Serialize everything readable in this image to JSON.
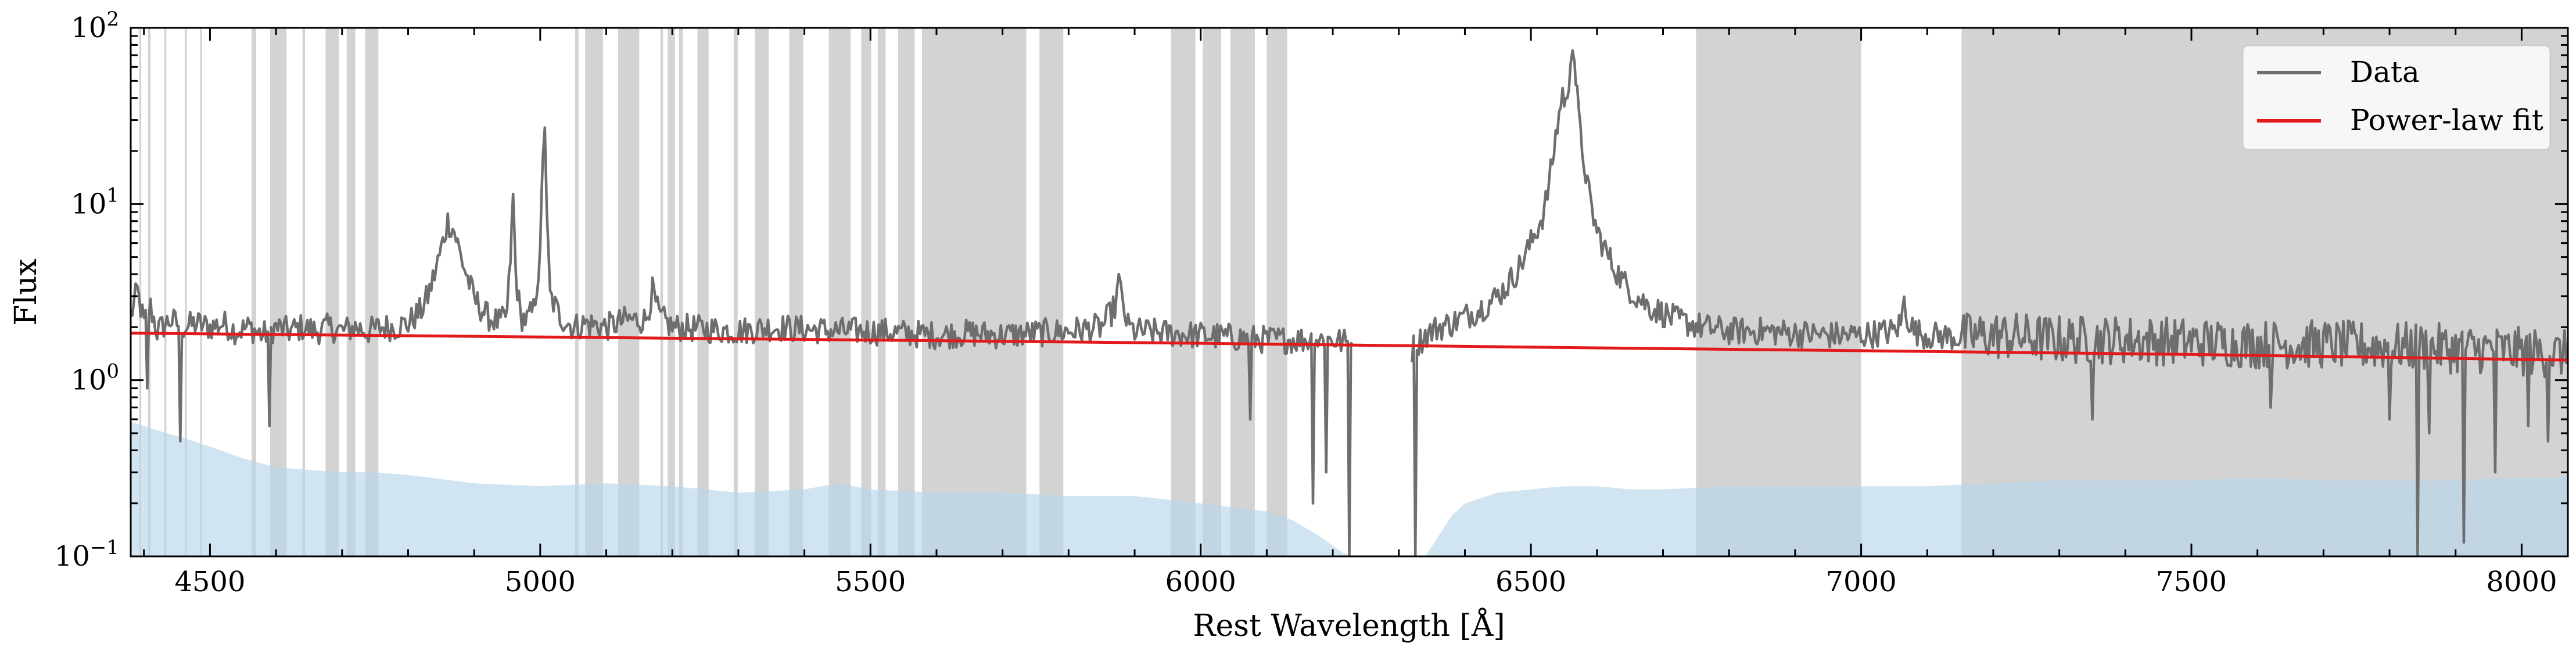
{
  "chart_data": {
    "type": "line",
    "title": "",
    "xlabel": "Rest Wavelength [Å]",
    "ylabel": "Flux",
    "xlim": [
      4380,
      8070
    ],
    "ylim": [
      0.1,
      100
    ],
    "yscale": "log",
    "x_ticks": [
      4500,
      5000,
      5500,
      6000,
      6500,
      7000,
      7500,
      8000
    ],
    "x_tick_labels": [
      "4500",
      "5000",
      "5500",
      "6000",
      "6500",
      "7000",
      "7500",
      "8000"
    ],
    "y_ticks": [
      0.1,
      1,
      10,
      100
    ],
    "y_tick_base": "10",
    "y_tick_exponents": [
      "−1",
      "0",
      "1",
      "2"
    ],
    "legend": {
      "position": "top-right",
      "entries": [
        {
          "label": "Data",
          "color": "#6e6e6e"
        },
        {
          "label": "Power-law fit",
          "color": "#e31a1c"
        }
      ]
    },
    "colors": {
      "data_line": "#6e6e6e",
      "fit_line": "#e31a1c",
      "mask": "#d3d3d3",
      "error_fill": "#b9d5ea"
    },
    "masked_regions": [
      [
        4393,
        4396
      ],
      [
        4406,
        4410
      ],
      [
        4431,
        4434
      ],
      [
        4462,
        4465
      ],
      [
        4485,
        4488
      ],
      [
        4563,
        4570
      ],
      [
        4591,
        4616
      ],
      [
        4640,
        4644
      ],
      [
        4675,
        4695
      ],
      [
        4707,
        4720
      ],
      [
        4735,
        4755
      ],
      [
        5053,
        5058
      ],
      [
        5068,
        5095
      ],
      [
        5118,
        5150
      ],
      [
        5182,
        5186
      ],
      [
        5193,
        5204
      ],
      [
        5210,
        5216
      ],
      [
        5238,
        5255
      ],
      [
        5293,
        5299
      ],
      [
        5325,
        5346
      ],
      [
        5377,
        5398
      ],
      [
        5437,
        5470
      ],
      [
        5486,
        5501
      ],
      [
        5511,
        5523
      ],
      [
        5542,
        5567
      ],
      [
        5578,
        5736
      ],
      [
        5756,
        5792
      ],
      [
        5955,
        5992
      ],
      [
        6003,
        6031
      ],
      [
        6045,
        6082
      ],
      [
        6100,
        6131
      ],
      [
        6750,
        7000
      ],
      [
        7152,
        8070
      ]
    ],
    "power_law_fit": {
      "x": [
        4380,
        5000,
        5500,
        6000,
        6500,
        7000,
        7500,
        8070
      ],
      "y": [
        1.85,
        1.76,
        1.69,
        1.62,
        1.54,
        1.47,
        1.4,
        1.3
      ]
    },
    "data_series": {
      "name": "Data",
      "x": [
        4380,
        4390,
        4400,
        4410,
        4420,
        4440,
        4460,
        4480,
        4500,
        4520,
        4540,
        4560,
        4580,
        4600,
        4620,
        4640,
        4660,
        4680,
        4700,
        4720,
        4740,
        4760,
        4780,
        4800,
        4820,
        4830,
        4840,
        4850,
        4860,
        4870,
        4880,
        4890,
        4900,
        4920,
        4940,
        4950,
        4955,
        4959,
        4963,
        4970,
        4980,
        4990,
        5000,
        5004,
        5007,
        5010,
        5015,
        5030,
        5050,
        5070,
        5100,
        5130,
        5160,
        5170,
        5180,
        5200,
        5250,
        5300,
        5350,
        5400,
        5450,
        5500,
        5550,
        5600,
        5650,
        5700,
        5750,
        5800,
        5850,
        5870,
        5876,
        5882,
        5890,
        5900,
        5950,
        6000,
        6050,
        6100,
        6150,
        6200,
        6230,
        6250,
        6300,
        6320,
        6340,
        6360,
        6380,
        6400,
        6420,
        6440,
        6460,
        6480,
        6500,
        6520,
        6530,
        6540,
        6548,
        6555,
        6560,
        6563,
        6566,
        6570,
        6575,
        6583,
        6590,
        6600,
        6620,
        6640,
        6660,
        6680,
        6700,
        6720,
        6740,
        6760,
        6800,
        6850,
        6900,
        6950,
        7000,
        7050,
        7060,
        7065,
        7070,
        7080,
        7100,
        7150,
        7200,
        7300,
        7400,
        7500,
        7600,
        7700,
        7800,
        7850,
        7900,
        7950,
        8000,
        8070
      ],
      "y": [
        2.3,
        3.2,
        2.1,
        2.6,
        1.9,
        2.2,
        2.0,
        2.1,
        2.0,
        2.1,
        1.9,
        2.0,
        1.8,
        2.0,
        1.9,
        2.0,
        1.9,
        2.0,
        1.9,
        2.0,
        1.9,
        2.0,
        2.0,
        2.1,
        2.5,
        3.0,
        4.0,
        5.5,
        8.0,
        7.0,
        5.0,
        3.8,
        2.9,
        2.3,
        2.1,
        2.4,
        5.0,
        11.0,
        4.0,
        2.3,
        2.2,
        2.5,
        5.0,
        20.0,
        29.0,
        8.0,
        3.0,
        2.3,
        2.0,
        2.1,
        2.0,
        2.2,
        2.2,
        3.2,
        2.3,
        2.0,
        1.95,
        1.9,
        2.0,
        1.95,
        1.9,
        1.9,
        1.85,
        1.8,
        1.85,
        1.8,
        1.85,
        1.9,
        2.0,
        2.6,
        3.6,
        2.7,
        2.0,
        1.9,
        1.85,
        1.8,
        1.75,
        1.7,
        1.7,
        1.7,
        1.6,
        null,
        null,
        1.5,
        1.8,
        2.0,
        2.1,
        2.3,
        2.5,
        2.8,
        3.3,
        4.2,
        6.0,
        9.0,
        15.0,
        28.0,
        43.0,
        35.0,
        70.0,
        88.0,
        65.0,
        40.0,
        24.0,
        15.0,
        10.0,
        7.0,
        4.8,
        3.6,
        3.0,
        2.6,
        2.4,
        2.2,
        2.1,
        2.0,
        1.9,
        1.9,
        1.85,
        1.8,
        1.8,
        1.9,
        2.1,
        2.8,
        2.3,
        1.9,
        1.8,
        1.75,
        1.8,
        1.7,
        1.7,
        1.65,
        1.6,
        1.6,
        1.55,
        1.55,
        1.5,
        1.5,
        1.45,
        1.4
      ]
    },
    "dips": [
      {
        "x": 4405,
        "y": 0.9
      },
      {
        "x": 4455,
        "y": 0.45
      },
      {
        "x": 4590,
        "y": 0.55
      },
      {
        "x": 6075,
        "y": 0.6
      },
      {
        "x": 6170,
        "y": 0.2
      },
      {
        "x": 6190,
        "y": 0.3
      },
      {
        "x": 6225,
        "y": 0.1
      },
      {
        "x": 6325,
        "y": 0.1
      },
      {
        "x": 7350,
        "y": 0.6
      },
      {
        "x": 7620,
        "y": 0.7
      },
      {
        "x": 7800,
        "y": 0.6
      },
      {
        "x": 7843,
        "y": 0.1
      },
      {
        "x": 7860,
        "y": 0.5
      },
      {
        "x": 7912,
        "y": 0.12
      },
      {
        "x": 7960,
        "y": 0.3
      },
      {
        "x": 8010,
        "y": 0.55
      },
      {
        "x": 8040,
        "y": 0.45
      }
    ],
    "error_band": {
      "x": [
        4380,
        4420,
        4460,
        4500,
        4550,
        4600,
        4650,
        4700,
        4750,
        4800,
        4900,
        5000,
        5100,
        5200,
        5300,
        5400,
        5450,
        5500,
        5600,
        5700,
        5800,
        5900,
        5950,
        6000,
        6050,
        6100,
        6140,
        6180,
        6200,
        6215,
        6230,
        6340,
        6360,
        6380,
        6400,
        6450,
        6500,
        6550,
        6600,
        6650,
        6700,
        6800,
        6900,
        7000,
        7100,
        7200,
        7300,
        7400,
        7500,
        7600,
        7700,
        7800,
        7900,
        8000,
        8070
      ],
      "y": [
        0.58,
        0.52,
        0.47,
        0.42,
        0.36,
        0.32,
        0.31,
        0.3,
        0.3,
        0.29,
        0.26,
        0.25,
        0.26,
        0.25,
        0.23,
        0.24,
        0.26,
        0.24,
        0.23,
        0.23,
        0.22,
        0.22,
        0.21,
        0.2,
        0.19,
        0.18,
        0.16,
        0.13,
        0.115,
        0.105,
        0.1,
        0.1,
        0.13,
        0.17,
        0.2,
        0.23,
        0.24,
        0.25,
        0.25,
        0.24,
        0.24,
        0.25,
        0.25,
        0.25,
        0.25,
        0.26,
        0.27,
        0.27,
        0.27,
        0.28,
        0.27,
        0.27,
        0.27,
        0.28,
        0.28
      ]
    }
  }
}
